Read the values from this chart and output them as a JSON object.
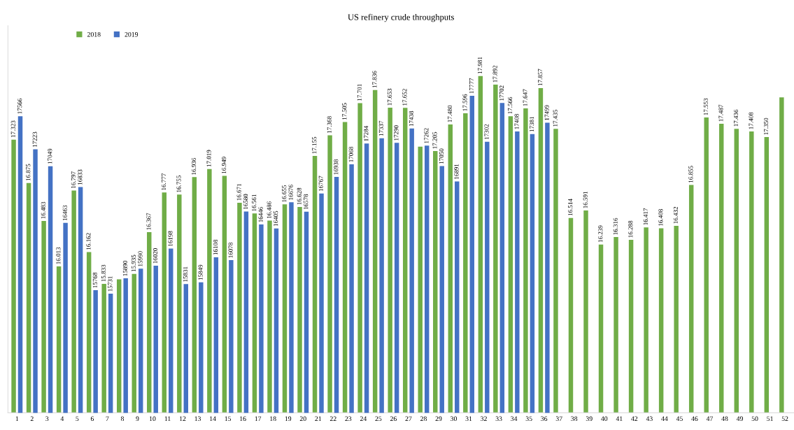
{
  "chart_data": {
    "type": "bar",
    "title": "US refinery crude throughputs",
    "categories": [
      "1",
      "2",
      "3",
      "4",
      "5",
      "6",
      "7",
      "8",
      "9",
      "10",
      "11",
      "12",
      "13",
      "14",
      "15",
      "16",
      "17",
      "18",
      "19",
      "20",
      "21",
      "22",
      "23",
      "24",
      "25",
      "26",
      "27",
      "28",
      "29",
      "30",
      "31",
      "32",
      "33",
      "34",
      "35",
      "36",
      "37",
      "38",
      "39",
      "40",
      "41",
      "42",
      "43",
      "44",
      "45",
      "46",
      "47",
      "48",
      "49",
      "50",
      "51",
      "52"
    ],
    "series": [
      {
        "name": "2018",
        "color": "#70ad47",
        "values": [
          17.323,
          16.875,
          16.483,
          16.013,
          16.797,
          16.162,
          15.833,
          15.88,
          15.935,
          16.367,
          16.777,
          16.755,
          16.936,
          17.019,
          16.949,
          16.671,
          16.561,
          16.486,
          16.655,
          16.628,
          17.155,
          17.368,
          17.505,
          17.701,
          17.836,
          17.653,
          17.652,
          17.25,
          17.205,
          17.48,
          17.596,
          17.981,
          17.892,
          17.566,
          17.647,
          17.857,
          17.435,
          16.514,
          16.591,
          16.239,
          16.316,
          16.288,
          16.417,
          16.408,
          16.432,
          16.855,
          17.553,
          17.487,
          17.436,
          17.408,
          17.35,
          17.76
        ],
        "value_labels": [
          "17.323",
          "16.875",
          "16.483",
          "16.013",
          "16.797",
          "16.162",
          "15.833",
          null,
          "15.935",
          "16.367",
          "16.777",
          "16.755",
          "16.936",
          "17.019",
          "16.949",
          "16.671",
          "16.561",
          "16.486",
          "16.655",
          "16.628",
          "17.155",
          "17.368",
          "17.505",
          "17.701",
          "17.836",
          "17.653",
          "17.652",
          null,
          "17.205",
          "17.480",
          "17.596",
          "17.981",
          "17.892",
          "17.566",
          "17.647",
          "17.857",
          "17.435",
          "16.514",
          "16.591",
          "16.239",
          "16.316",
          "16.288",
          "16.417",
          "16.408",
          "16.432",
          "16.855",
          "17.553",
          "17.487",
          "17.436",
          "17.408",
          "17.350",
          null
        ]
      },
      {
        "name": "2019",
        "color": "#4472c4",
        "axis": "y2",
        "values": [
          17566,
          17223,
          17049,
          16463,
          16833,
          15768,
          15731,
          15890,
          15990,
          16020,
          16198,
          15831,
          15849,
          16108,
          16078,
          16580,
          16446,
          16405,
          16676,
          16578,
          16767,
          16938,
          17068,
          17284,
          17337,
          17290,
          17438,
          17262,
          17050,
          16891,
          17777,
          17302,
          17702,
          17408,
          17381,
          17499,
          null,
          null,
          null,
          null,
          null,
          null,
          null,
          null,
          null,
          null,
          null,
          null,
          null,
          null,
          null,
          null
        ],
        "value_labels": [
          "17566",
          "17223",
          "17049",
          "16463",
          "16833",
          "15768",
          "15731",
          "15890",
          "15990",
          "16020",
          "16198",
          "15831",
          "15849",
          "16108",
          "16078",
          "16580",
          "16446",
          "16405",
          "16676",
          "16578",
          "16767",
          "16938",
          "17068",
          "17284",
          "17337",
          "17290",
          "17438",
          "17262",
          "17050",
          "16891",
          "17777",
          "17302",
          "17702",
          "17408",
          "17381",
          "17499",
          null,
          null,
          null,
          null,
          null,
          null,
          null,
          null,
          null,
          null,
          null,
          null,
          null,
          null,
          null,
          null
        ]
      }
    ],
    "ylim": [
      14.5,
      18.5
    ],
    "y2lim": [
      14500,
      18500
    ],
    "tick_labels": "x",
    "legend": "top left",
    "grid": false
  }
}
